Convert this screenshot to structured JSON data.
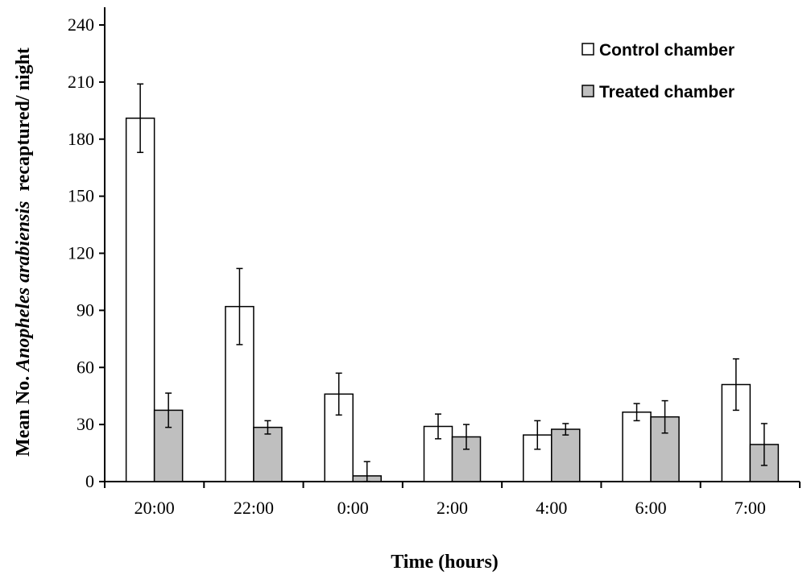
{
  "chart_data": {
    "type": "bar",
    "categories": [
      "20:00",
      "22:00",
      "0:00",
      "2:00",
      "4:00",
      "6:00",
      "7:00"
    ],
    "series": [
      {
        "name": "Control chamber",
        "color": "#ffffff",
        "values": [
          191,
          92,
          46,
          29,
          24.5,
          36.5,
          51
        ],
        "errors": [
          18,
          20,
          11,
          6.5,
          7.5,
          4.5,
          13.5
        ]
      },
      {
        "name": "Treated chamber",
        "color": "#bfbfbf",
        "values": [
          37.5,
          28.5,
          3,
          23.5,
          27.5,
          34,
          19.5
        ],
        "errors": [
          9,
          3.5,
          7.5,
          6.5,
          3,
          8.5,
          11
        ]
      }
    ],
    "ylim": [
      0,
      240
    ],
    "yticks": [
      0,
      30,
      60,
      90,
      120,
      150,
      180,
      210,
      240
    ],
    "ylabel_prefix": "Mean No. ",
    "ylabel_italic": "Anopheles arabiensis",
    "ylabel_suffix": "  recaptured/ night",
    "xlabel": "Time (hours)",
    "legend_position": "top-right",
    "grid": false
  }
}
